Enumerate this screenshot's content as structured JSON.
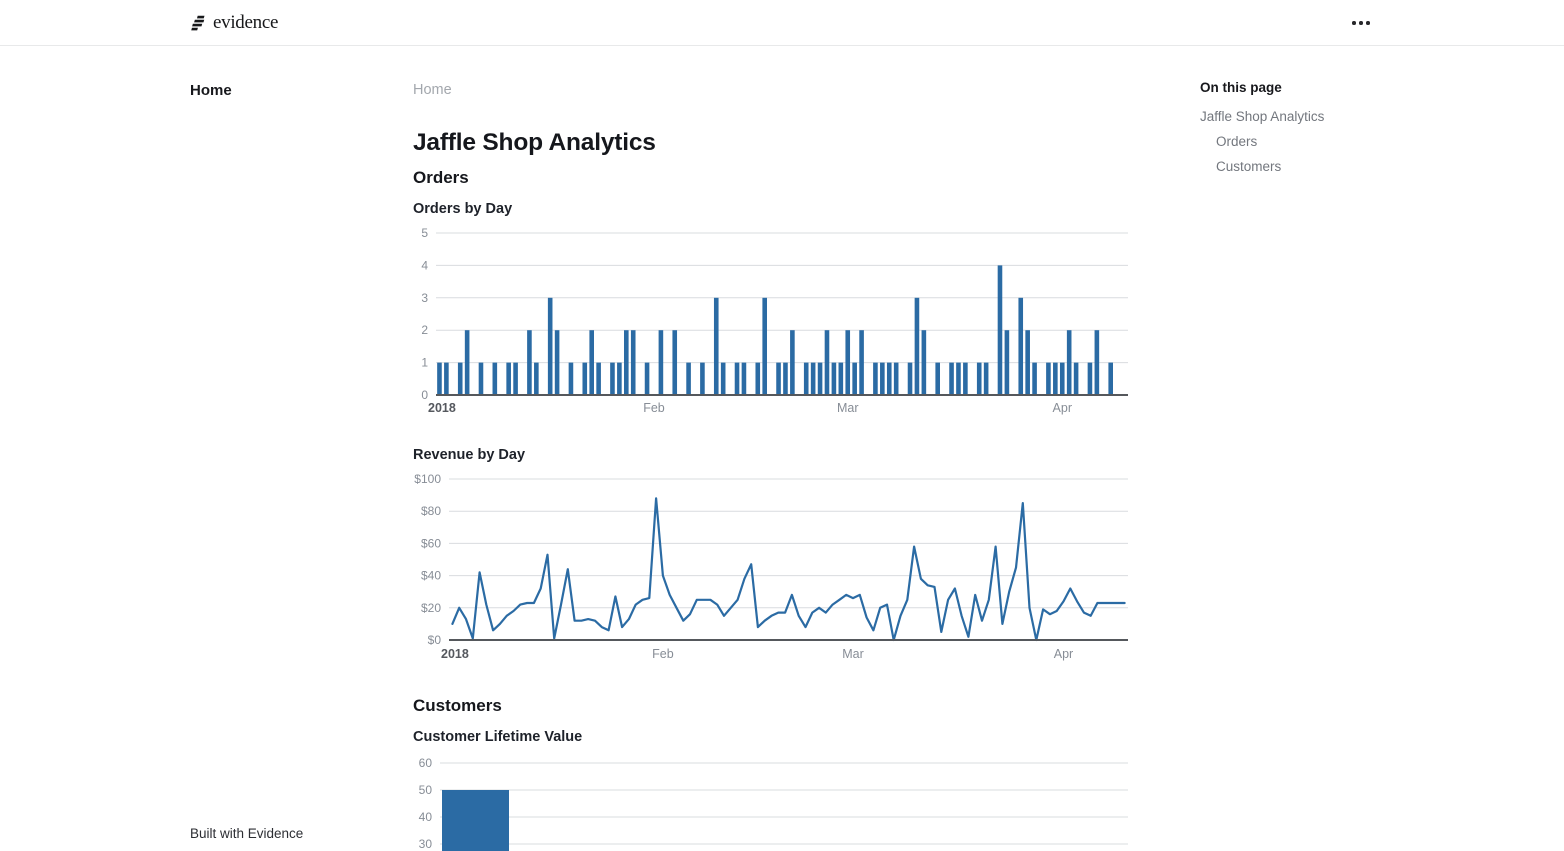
{
  "header": {
    "logo_text": "evidence"
  },
  "sidebar": {
    "items": [
      {
        "label": "Home",
        "active": true
      }
    ]
  },
  "breadcrumb": "Home",
  "title": "Jaffle Shop Analytics",
  "sections": {
    "orders": "Orders",
    "customers": "Customers"
  },
  "toc": {
    "heading": "On this page",
    "items": [
      {
        "label": "Jaffle Shop Analytics",
        "level": 0
      },
      {
        "label": "Orders",
        "level": 1
      },
      {
        "label": "Customers",
        "level": 1
      }
    ]
  },
  "footer": "Built with Evidence",
  "colors": {
    "accent": "#2b6ba4",
    "grid": "#d9dcdf",
    "axis": "#55585c",
    "tick_text": "#878d96",
    "year_text": "#55585e"
  },
  "chart_data": [
    {
      "type": "bar",
      "title": "Orders by Day",
      "section": "Orders",
      "xlabel": "",
      "ylabel": "",
      "ylim": [
        0,
        5
      ],
      "yticks": [
        0,
        1,
        2,
        3,
        4,
        5
      ],
      "x_axis": {
        "unit": "day",
        "labels": [
          {
            "text": "2018",
            "day": 0
          },
          {
            "text": "Feb",
            "day": 31
          },
          {
            "text": "Mar",
            "day": 59
          },
          {
            "text": "Apr",
            "day": 90
          }
        ]
      },
      "values": [
        1,
        1,
        0,
        1,
        2,
        0,
        1,
        0,
        1,
        0,
        1,
        1,
        0,
        2,
        1,
        0,
        3,
        2,
        0,
        1,
        0,
        1,
        2,
        1,
        0,
        1,
        1,
        2,
        2,
        0,
        1,
        0,
        2,
        0,
        2,
        0,
        1,
        0,
        1,
        0,
        3,
        1,
        0,
        1,
        1,
        0,
        1,
        3,
        0,
        1,
        1,
        2,
        0,
        1,
        1,
        1,
        2,
        1,
        1,
        2,
        1,
        2,
        0,
        1,
        1,
        1,
        1,
        0,
        1,
        3,
        2,
        0,
        1,
        0,
        1,
        1,
        1,
        0,
        1,
        1,
        0,
        4,
        2,
        0,
        3,
        2,
        1,
        0,
        1,
        1,
        1,
        2,
        1,
        0,
        1,
        2,
        0,
        1,
        0,
        0
      ]
    },
    {
      "type": "line",
      "title": "Revenue by Day",
      "section": "Orders",
      "xlabel": "",
      "ylabel": "",
      "ylim": [
        0,
        100
      ],
      "yticks": [
        0,
        20,
        40,
        60,
        80,
        100
      ],
      "ytick_prefix": "$",
      "x_axis": {
        "unit": "day",
        "labels": [
          {
            "text": "2018",
            "day": 0
          },
          {
            "text": "Feb",
            "day": 31
          },
          {
            "text": "Mar",
            "day": 59
          },
          {
            "text": "Apr",
            "day": 90
          }
        ]
      },
      "values": [
        10,
        20,
        13,
        1,
        42,
        22,
        6,
        10,
        15,
        18,
        22,
        23,
        23,
        32,
        53,
        1,
        22,
        44,
        12,
        12,
        13,
        12,
        8,
        6,
        27,
        8,
        13,
        22,
        25,
        26,
        88,
        40,
        28,
        20,
        12,
        16,
        25,
        25,
        25,
        22,
        15,
        20,
        25,
        38,
        47,
        8,
        12,
        15,
        17,
        17,
        28,
        15,
        8,
        17,
        20,
        17,
        22,
        25,
        28,
        26,
        28,
        14,
        6,
        20,
        22,
        0,
        15,
        25,
        58,
        38,
        34,
        33,
        5,
        25,
        32,
        15,
        2,
        28,
        12,
        25,
        58,
        10,
        30,
        45,
        85,
        20,
        0,
        19,
        16,
        18,
        24,
        32,
        24,
        17,
        15,
        23,
        23,
        23,
        23,
        23
      ]
    },
    {
      "type": "bar",
      "title": "Customer Lifetime Value",
      "section": "Customers",
      "yticks_visible": [
        60,
        50,
        40,
        30
      ],
      "values": [
        50
      ]
    }
  ]
}
